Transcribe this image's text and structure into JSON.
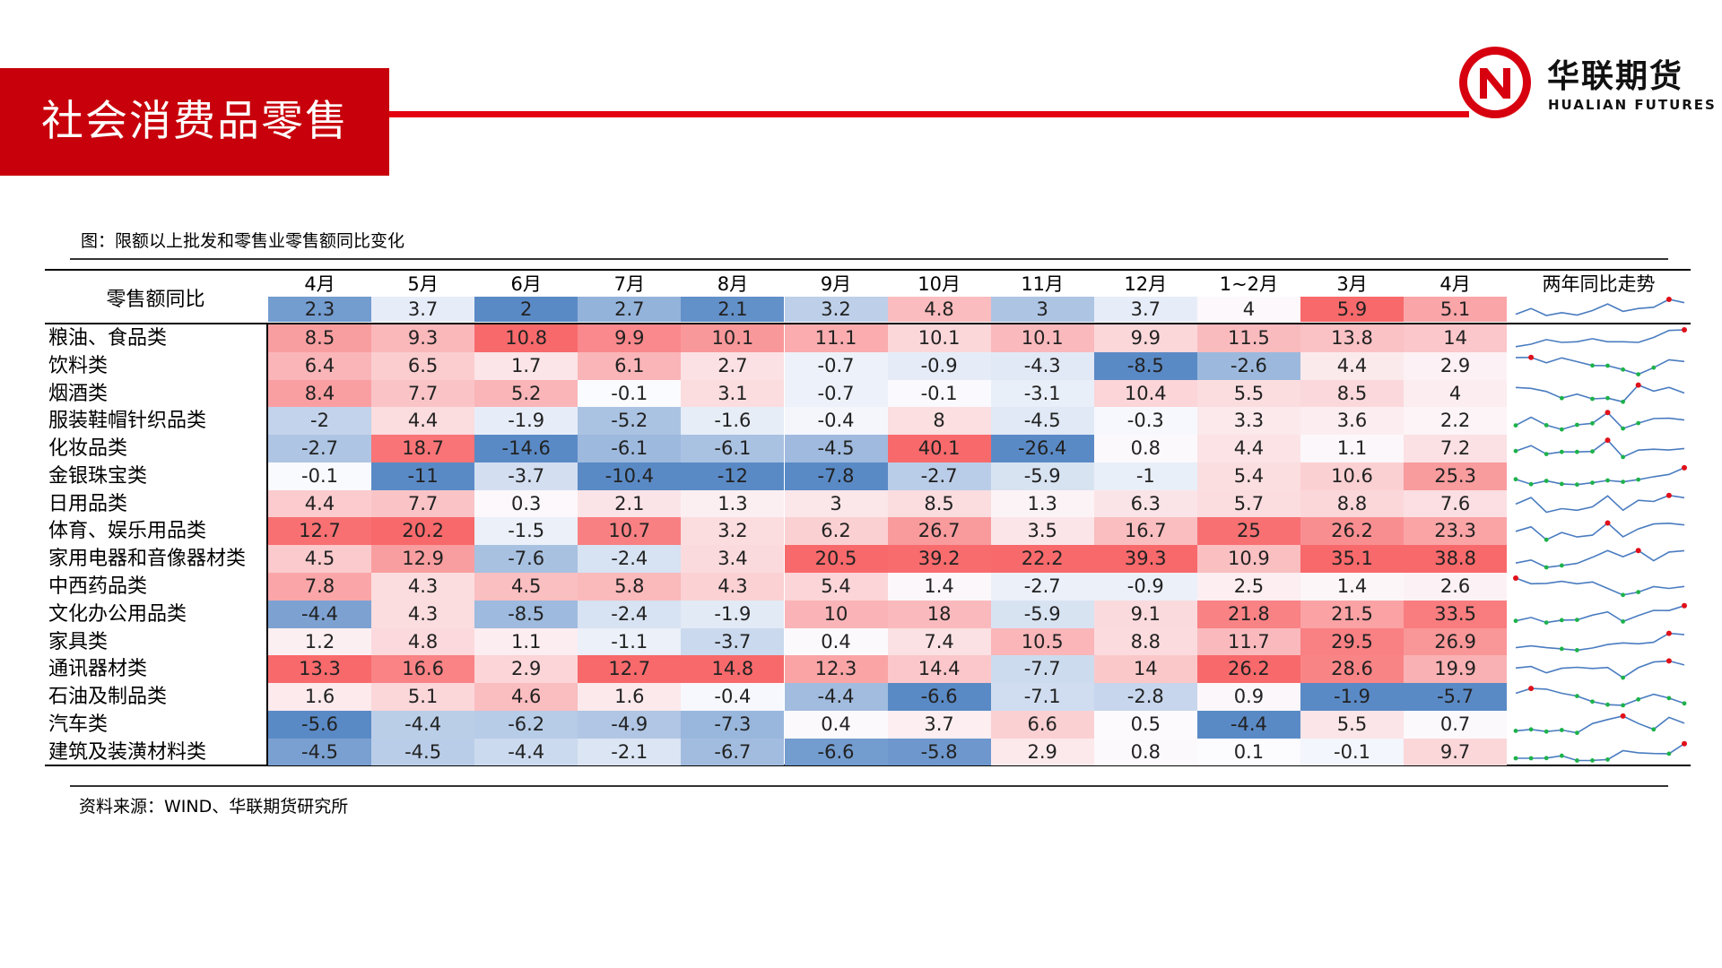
{
  "page_title": "社会消费品零售",
  "logo": {
    "cn": "华联期货",
    "en": "HUALIAN FUTURES",
    "icon": "hualian-n-logo"
  },
  "figure_caption": "图：限额以上批发和零售业零售额同比变化",
  "source": "资料来源：WIND、华联期货研究所",
  "colors": {
    "brand_red": "#c8000b",
    "hot": "#f8696b",
    "neutral": "#fcfcff",
    "cold": "#5a8ac6"
  },
  "table": {
    "header_label": "零售额同比",
    "trend_header": "两年同比走势",
    "months": [
      "4月",
      "5月",
      "6月",
      "7月",
      "8月",
      "9月",
      "10月",
      "11月",
      "12月",
      "1~2月",
      "3月",
      "4月"
    ],
    "overall": [
      "2.3",
      "3.7",
      "2",
      "2.7",
      "2.1",
      "3.2",
      "4.8",
      "3",
      "3.7",
      "4",
      "5.9",
      "5.1"
    ],
    "rows": [
      {
        "label": "粮油、食品类",
        "values": [
          "8.5",
          "9.3",
          "10.8",
          "9.9",
          "10.1",
          "11.1",
          "10.1",
          "10.1",
          "9.9",
          "11.5",
          "13.8",
          "14"
        ]
      },
      {
        "label": "饮料类",
        "values": [
          "6.4",
          "6.5",
          "1.7",
          "6.1",
          "2.7",
          "-0.7",
          "-0.9",
          "-4.3",
          "-8.5",
          "-2.6",
          "4.4",
          "2.9"
        ]
      },
      {
        "label": "烟酒类",
        "values": [
          "8.4",
          "7.7",
          "5.2",
          "-0.1",
          "3.1",
          "-0.7",
          "-0.1",
          "-3.1",
          "10.4",
          "5.5",
          "8.5",
          "4"
        ]
      },
      {
        "label": "服装鞋帽针织品类",
        "values": [
          "-2",
          "4.4",
          "-1.9",
          "-5.2",
          "-1.6",
          "-0.4",
          "8",
          "-4.5",
          "-0.3",
          "3.3",
          "3.6",
          "2.2"
        ]
      },
      {
        "label": "化妆品类",
        "values": [
          "-2.7",
          "18.7",
          "-14.6",
          "-6.1",
          "-6.1",
          "-4.5",
          "40.1",
          "-26.4",
          "0.8",
          "4.4",
          "1.1",
          "7.2"
        ]
      },
      {
        "label": "金银珠宝类",
        "values": [
          "-0.1",
          "-11",
          "-3.7",
          "-10.4",
          "-12",
          "-7.8",
          "-2.7",
          "-5.9",
          "-1",
          "5.4",
          "10.6",
          "25.3"
        ]
      },
      {
        "label": "日用品类",
        "values": [
          "4.4",
          "7.7",
          "0.3",
          "2.1",
          "1.3",
          "3",
          "8.5",
          "1.3",
          "6.3",
          "5.7",
          "8.8",
          "7.6"
        ]
      },
      {
        "label": "体育、娱乐用品类",
        "values": [
          "12.7",
          "20.2",
          "-1.5",
          "10.7",
          "3.2",
          "6.2",
          "26.7",
          "3.5",
          "16.7",
          "25",
          "26.2",
          "23.3"
        ]
      },
      {
        "label": "家用电器和音像器材类",
        "values": [
          "4.5",
          "12.9",
          "-7.6",
          "-2.4",
          "3.4",
          "20.5",
          "39.2",
          "22.2",
          "39.3",
          "10.9",
          "35.1",
          "38.8"
        ]
      },
      {
        "label": "中西药品类",
        "values": [
          "7.8",
          "4.3",
          "4.5",
          "5.8",
          "4.3",
          "5.4",
          "1.4",
          "-2.7",
          "-0.9",
          "2.5",
          "1.4",
          "2.6"
        ]
      },
      {
        "label": "文化办公用品类",
        "values": [
          "-4.4",
          "4.3",
          "-8.5",
          "-2.4",
          "-1.9",
          "10",
          "18",
          "-5.9",
          "9.1",
          "21.8",
          "21.5",
          "33.5"
        ]
      },
      {
        "label": "家具类",
        "values": [
          "1.2",
          "4.8",
          "1.1",
          "-1.1",
          "-3.7",
          "0.4",
          "7.4",
          "10.5",
          "8.8",
          "11.7",
          "29.5",
          "26.9"
        ]
      },
      {
        "label": "通讯器材类",
        "values": [
          "13.3",
          "16.6",
          "2.9",
          "12.7",
          "14.8",
          "12.3",
          "14.4",
          "-7.7",
          "14",
          "26.2",
          "28.6",
          "19.9"
        ]
      },
      {
        "label": "石油及制品类",
        "values": [
          "1.6",
          "5.1",
          "4.6",
          "1.6",
          "-0.4",
          "-4.4",
          "-6.6",
          "-7.1",
          "-2.8",
          "0.9",
          "-1.9",
          "-5.7"
        ]
      },
      {
        "label": "汽车类",
        "values": [
          "-5.6",
          "-4.4",
          "-6.2",
          "-4.9",
          "-7.3",
          "0.4",
          "3.7",
          "6.6",
          "0.5",
          "-4.4",
          "5.5",
          "0.7"
        ]
      },
      {
        "label": "建筑及装潢材料类",
        "values": [
          "-4.5",
          "-4.5",
          "-4.4",
          "-2.1",
          "-6.7",
          "-6.6",
          "-5.8",
          "2.9",
          "0.8",
          "0.1",
          "-0.1",
          "9.7"
        ]
      }
    ]
  }
}
